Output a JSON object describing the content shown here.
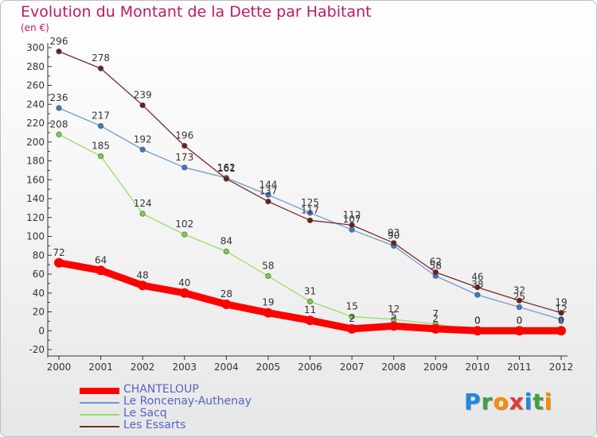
{
  "title": "Evolution du Montant de la Dette par Habitant",
  "subtitle": "(en €)",
  "logo": {
    "text": "Proxiti",
    "letters": [
      {
        "ch": "P",
        "color": "#1e88e5"
      },
      {
        "ch": "r",
        "color": "#43a047"
      },
      {
        "ch": "o",
        "color": "#fb8c00"
      },
      {
        "ch": "x",
        "color": "#e53935"
      },
      {
        "ch": "i",
        "color": "#1e88e5"
      },
      {
        "ch": "t",
        "color": "#43a047"
      },
      {
        "ch": "i",
        "color": "#fb8c00"
      }
    ]
  },
  "chart_data": {
    "type": "line",
    "title": "Evolution du Montant de la Dette par Habitant",
    "ylabel": "(en €)",
    "x": [
      2000,
      2001,
      2002,
      2003,
      2004,
      2005,
      2006,
      2007,
      2008,
      2009,
      2010,
      2011,
      2012
    ],
    "ylim": [
      -20,
      300
    ],
    "yticks": [
      -20,
      0,
      20,
      40,
      60,
      80,
      100,
      120,
      140,
      160,
      180,
      200,
      220,
      240,
      260,
      280,
      300
    ],
    "grid": false,
    "legend_position": "bottom-left",
    "series": [
      {
        "name": "CHANTELOUP",
        "color": "#ff0000",
        "marker_color": "#ff0000",
        "thick": true,
        "values": [
          72,
          64,
          48,
          40,
          28,
          19,
          11,
          2,
          5,
          2,
          0,
          0,
          0
        ]
      },
      {
        "name": "Le Roncenay-Authenay",
        "color": "#6a9bd1",
        "marker_color": "#3a7bc8",
        "thick": false,
        "values": [
          236,
          217,
          192,
          173,
          162,
          144,
          125,
          107,
          90,
          58,
          38,
          25,
          12
        ]
      },
      {
        "name": "Le Sacq",
        "color": "#99dd66",
        "marker_color": "#7ccc44",
        "thick": false,
        "values": [
          208,
          185,
          124,
          102,
          84,
          58,
          31,
          15,
          12,
          7,
          0,
          0,
          0
        ]
      },
      {
        "name": "Les Essarts",
        "color": "#7a2a2a",
        "marker_color": "#6b1f1f",
        "thick": false,
        "values": [
          296,
          278,
          239,
          196,
          161,
          137,
          117,
          112,
          93,
          62,
          46,
          32,
          19
        ]
      }
    ]
  }
}
